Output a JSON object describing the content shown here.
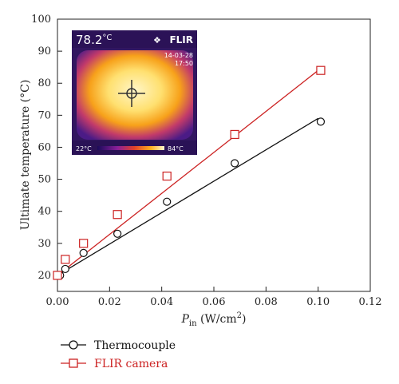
{
  "chart_data": {
    "type": "scatter",
    "xlabel_main": "P",
    "xlabel_sub": "in",
    "xlabel_units": " (W/cm",
    "xlabel_sup": "2",
    "xlabel_close": ")",
    "ylabel": "Ultimate temperature (°C)",
    "xlim": [
      0,
      0.12
    ],
    "ylim": [
      15,
      100
    ],
    "x_ticks": [
      "0.00",
      "0.02",
      "0.04",
      "0.06",
      "0.08",
      "0.10",
      "0.12"
    ],
    "y_ticks": [
      "20",
      "30",
      "40",
      "50",
      "60",
      "70",
      "80",
      "90",
      "100"
    ],
    "grid": false,
    "legend_position": "bottom-left",
    "series": [
      {
        "name": "Thermocouple",
        "marker": "circle",
        "color": "#111111",
        "x": [
          0.0,
          0.001,
          0.003,
          0.01,
          0.023,
          0.042,
          0.068,
          0.101
        ],
        "y": [
          20,
          20,
          22,
          27,
          33,
          43,
          55,
          68
        ],
        "fit_line": {
          "x": [
            0.0,
            0.1
          ],
          "y": [
            20,
            69
          ]
        }
      },
      {
        "name": "FLIR camera",
        "marker": "square",
        "color": "#cc2222",
        "x": [
          0.0,
          0.003,
          0.01,
          0.023,
          0.042,
          0.068,
          0.101
        ],
        "y": [
          20,
          25,
          30,
          39,
          51,
          64,
          84
        ],
        "fit_line": {
          "x": [
            0.0,
            0.1
          ],
          "y": [
            20,
            84
          ]
        }
      }
    ]
  },
  "inset": {
    "temperature_readout": "78.2",
    "temperature_unit": "°C",
    "brand": "FLIR",
    "date": "14-03-28",
    "time": "17:50",
    "scale_min": "22°C",
    "scale_max": "84°C"
  },
  "colors": {
    "thermocouple": "#111111",
    "flir": "#cc2222",
    "axis": "#222222"
  }
}
